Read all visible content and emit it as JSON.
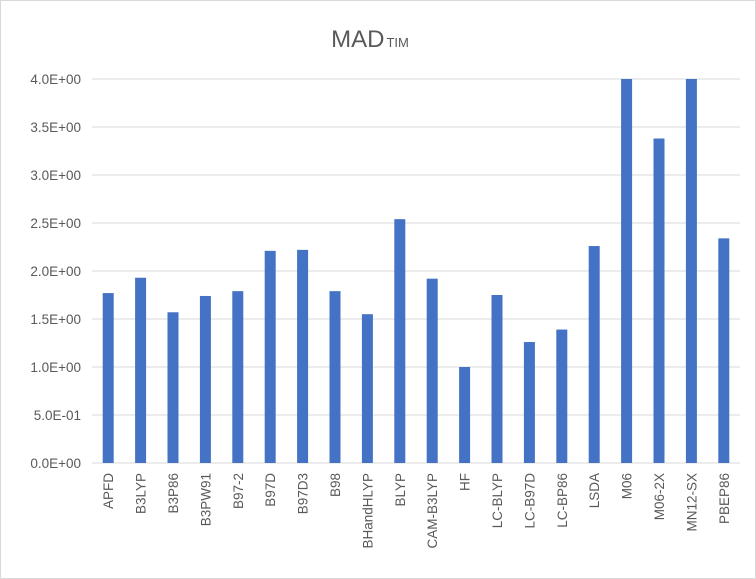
{
  "chart_data": {
    "type": "bar",
    "title": "MAD",
    "title_subscript": "TIM",
    "xlabel": "",
    "ylabel": "",
    "ylim": [
      0,
      4.0
    ],
    "yticks": [
      0,
      0.5,
      1.0,
      1.5,
      2.0,
      2.5,
      3.0,
      3.5,
      4.0
    ],
    "ytick_labels": [
      "0.0E+00",
      "5.0E-01",
      "1.0E+00",
      "1.5E+00",
      "2.0E+00",
      "2.5E+00",
      "3.0E+00",
      "3.5E+00",
      "4.0E+00"
    ],
    "grid": true,
    "legend": "none",
    "categories": [
      "APFD",
      "B3LYP",
      "B3P86",
      "B3PW91",
      "B97-2",
      "B97D",
      "B97D3",
      "B98",
      "BHandHLYP",
      "BLYP",
      "CAM-B3LYP",
      "HF",
      "LC-BLYP",
      "LC-B97D",
      "LC-BP86",
      "LSDA",
      "M06",
      "M06-2X",
      "MN12-SX",
      "PBEP86"
    ],
    "values": [
      1.77,
      1.93,
      1.57,
      1.74,
      1.79,
      2.21,
      2.22,
      1.79,
      1.55,
      2.54,
      1.92,
      1.0,
      1.75,
      1.26,
      1.39,
      2.26,
      4.0,
      3.38,
      4.0,
      2.34
    ],
    "colors": {
      "bar": "#4472C4",
      "grid": "#d9d9d9",
      "text": "#595959"
    }
  }
}
